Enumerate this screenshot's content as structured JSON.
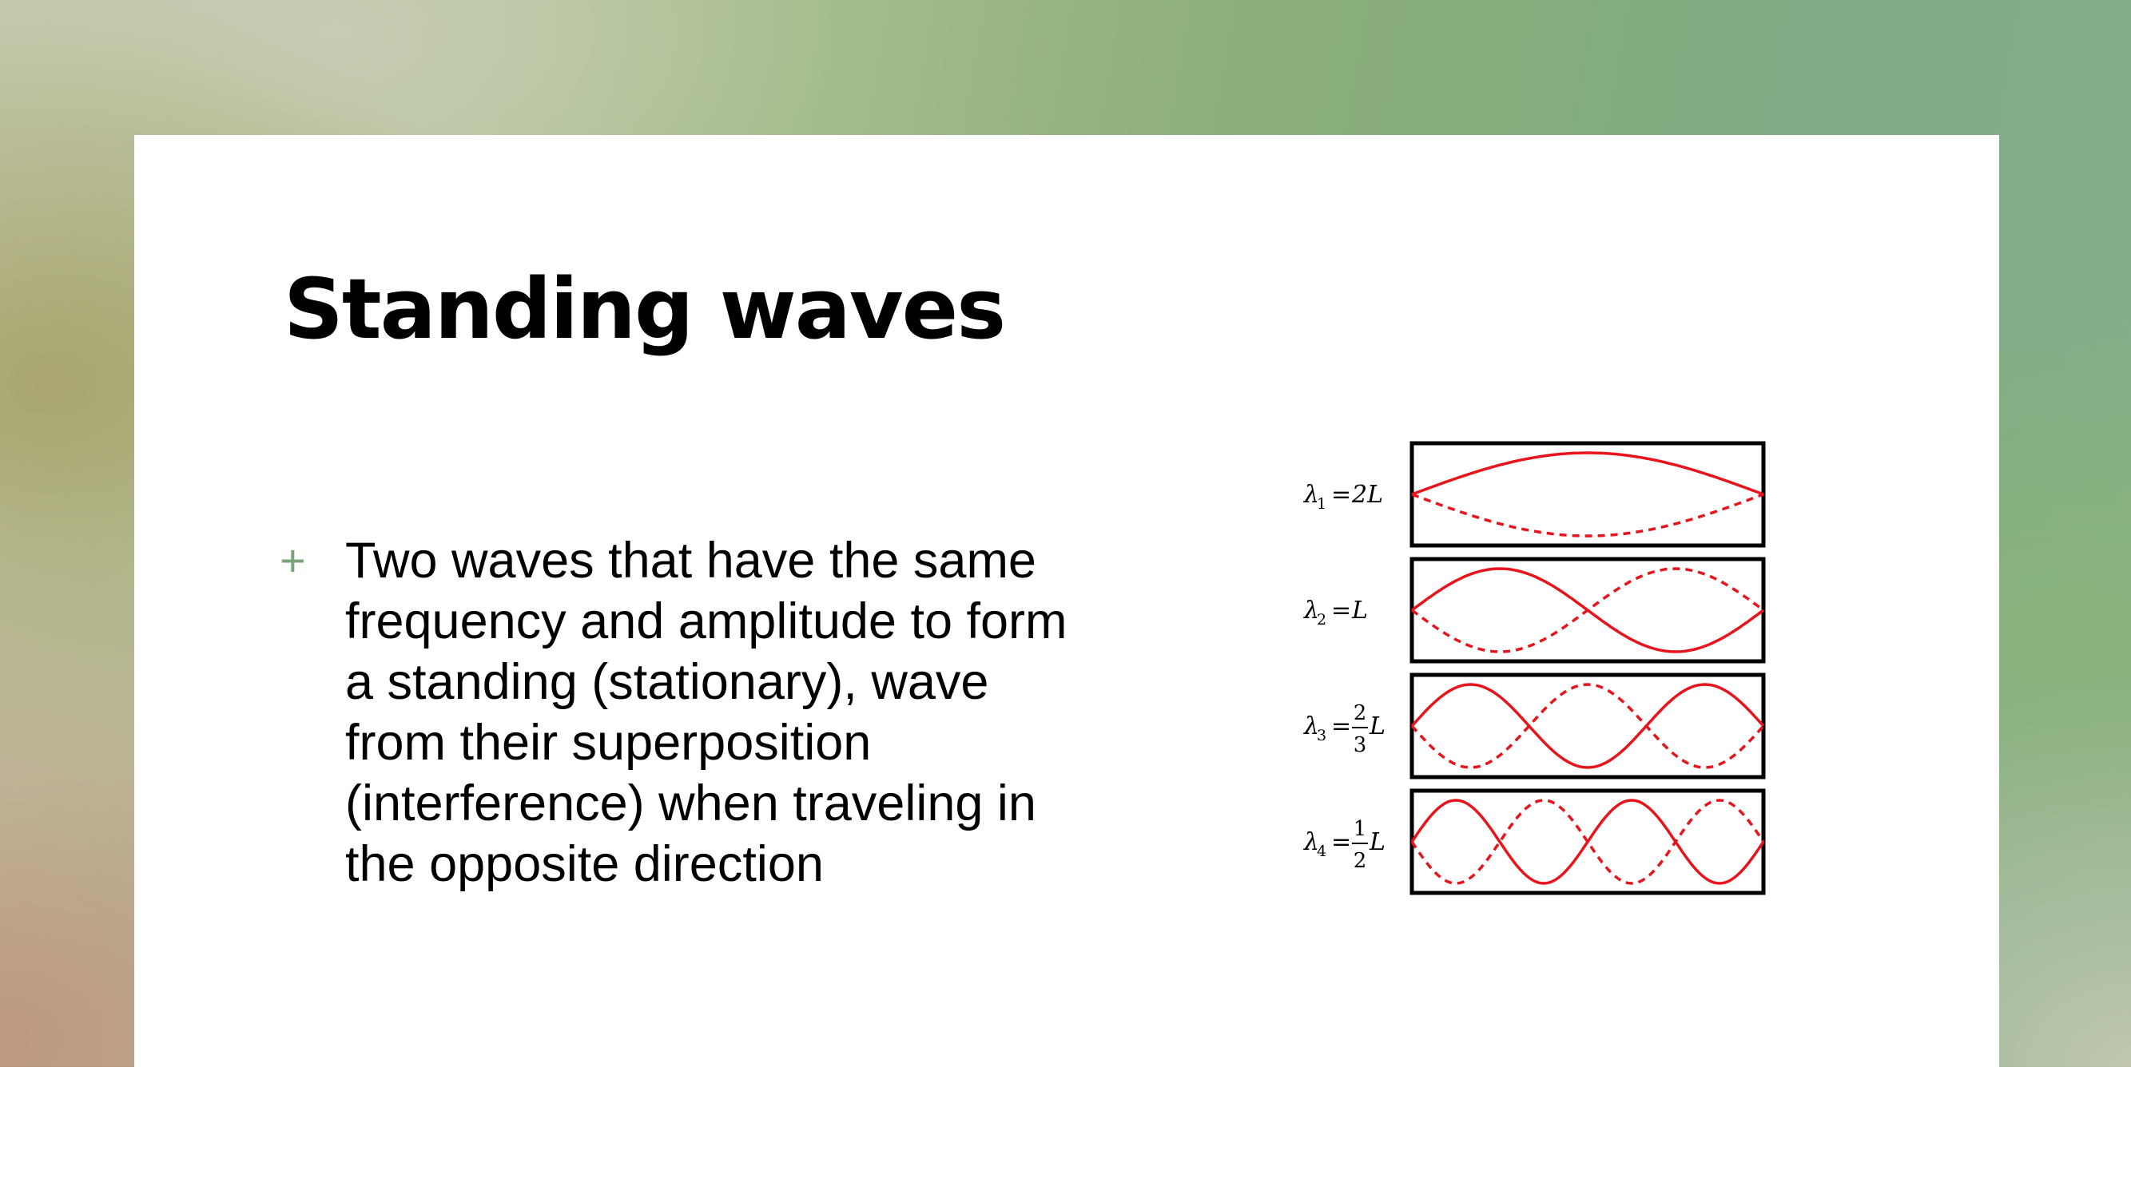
{
  "slide": {
    "title": "Standing waves",
    "bullets": [
      {
        "marker": "+",
        "text": "Two waves that have the same frequency and amplitude to form a standing (stationary), wave from their superposition (interference) when traveling in the opposite direction"
      }
    ]
  },
  "figure": {
    "wave_color": "#e8141c",
    "frame_color": "#000000",
    "modes": [
      {
        "symbol": "λ",
        "subscript": "1",
        "equals": "=",
        "coefficient": "2",
        "numerator": "",
        "denominator": "",
        "variable": "L",
        "loops": 1
      },
      {
        "symbol": "λ",
        "subscript": "2",
        "equals": "=",
        "coefficient": "",
        "numerator": "",
        "denominator": "",
        "variable": "L",
        "loops": 2
      },
      {
        "symbol": "λ",
        "subscript": "3",
        "equals": "=",
        "coefficient": "",
        "numerator": "2",
        "denominator": "3",
        "variable": "L",
        "loops": 3
      },
      {
        "symbol": "λ",
        "subscript": "4",
        "equals": "=",
        "coefficient": "",
        "numerator": "1",
        "denominator": "2",
        "variable": "L",
        "loops": 4
      }
    ]
  },
  "colors": {
    "accent": "#7aa37c",
    "text": "#000000",
    "slide_background": "#ffffff"
  }
}
